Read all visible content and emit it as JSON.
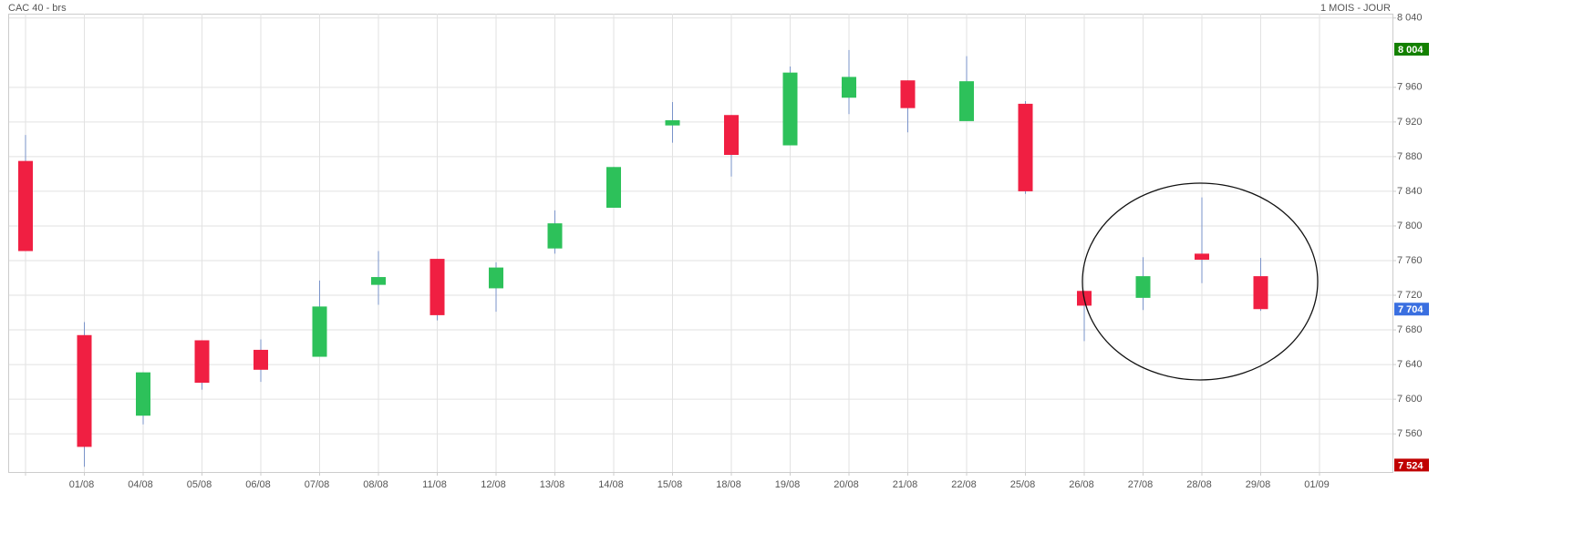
{
  "chart_data": {
    "type": "candlestick",
    "title": "CAC 40 - brs",
    "subtitle": "1 MOIS - JOUR",
    "categories": [
      null,
      "01/08",
      "04/08",
      "05/08",
      "06/08",
      "07/08",
      "08/08",
      "11/08",
      "12/08",
      "13/08",
      "14/08",
      "15/08",
      "18/08",
      "19/08",
      "20/08",
      "21/08",
      "22/08",
      "25/08",
      "26/08",
      "27/08",
      "28/08",
      "29/08",
      "01/09"
    ],
    "open": [
      7875,
      7674,
      7581,
      7668,
      7657,
      7649,
      7732,
      7762,
      7728,
      7774,
      7821,
      7916,
      7928,
      7893,
      7948,
      7968,
      7921,
      7941,
      7725,
      7717,
      7768,
      7742,
      null
    ],
    "high": [
      7905,
      7689,
      7631,
      7668,
      7669,
      7737,
      7771,
      7762,
      7758,
      7818,
      7868,
      7943,
      7928,
      7984,
      8003,
      7968,
      7996,
      7944,
      7725,
      7764,
      7833,
      7763,
      null
    ],
    "low": [
      7771,
      7522,
      7571,
      7611,
      7620,
      7649,
      7709,
      7691,
      7701,
      7768,
      7821,
      7896,
      7857,
      7893,
      7929,
      7908,
      7921,
      7837,
      7667,
      7703,
      7734,
      7702,
      null
    ],
    "close": [
      7771,
      7545,
      7631,
      7619,
      7634,
      7707,
      7741,
      7697,
      7752,
      7803,
      7868,
      7922,
      7882,
      7977,
      7972,
      7936,
      7967,
      7840,
      7708,
      7742,
      7761,
      7704,
      null
    ],
    "up_color": "#2dc15a",
    "down_color": "#f01f42",
    "ylim": [
      7516,
      8045
    ],
    "yticks": [
      {
        "value": 7560,
        "label": "7 560"
      },
      {
        "value": 7600,
        "label": "7 600"
      },
      {
        "value": 7640,
        "label": "7 640"
      },
      {
        "value": 7680,
        "label": "7 680"
      },
      {
        "value": 7720,
        "label": "7 720"
      },
      {
        "value": 7760,
        "label": "7 760"
      },
      {
        "value": 7800,
        "label": "7 800"
      },
      {
        "value": 7840,
        "label": "7 840"
      },
      {
        "value": 7880,
        "label": "7 880"
      },
      {
        "value": 7920,
        "label": "7 920"
      },
      {
        "value": 7960,
        "label": "7 960"
      },
      {
        "value": 8040,
        "label": "8 040"
      }
    ],
    "grid": true,
    "price_markers": [
      {
        "value": 8004,
        "label": "8 004",
        "color": "#138000"
      },
      {
        "value": 7704,
        "label": "7 704",
        "color": "#3a6fe0"
      },
      {
        "value": 7524,
        "label": "7 524",
        "color": "#c00000"
      }
    ]
  }
}
